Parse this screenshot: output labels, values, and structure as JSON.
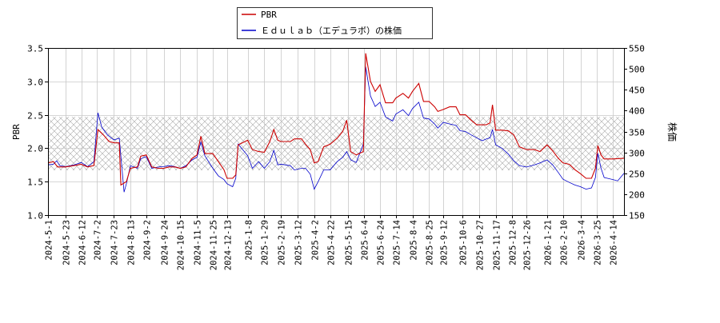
{
  "chart_data": {
    "type": "line",
    "legend_position": "top-center",
    "grid": true,
    "ylabel_left": "PBR",
    "ylabel_right": "株価",
    "ylim_left": [
      1.0,
      3.5
    ],
    "ylim_right": [
      150,
      550
    ],
    "yticks_left": [
      "1.0",
      "1.5",
      "2.0",
      "2.5",
      "3.0",
      "3.5"
    ],
    "yticks_right": [
      "150",
      "200",
      "250",
      "300",
      "350",
      "400",
      "450",
      "500",
      "550"
    ],
    "x_start": "2024-5-1",
    "x_end": "2026-4-28",
    "xtick_labels": [
      "2024-5-1",
      "2024-5-23",
      "2024-6-12",
      "2024-7-2",
      "2024-7-23",
      "2024-8-13",
      "2024-9-2",
      "2024-9-24",
      "2024-10-15",
      "2024-11-5",
      "2024-11-25",
      "2024-12-13",
      "2025-1-8",
      "2025-1-29",
      "2025-2-19",
      "2025-3-12",
      "2025-4-2",
      "2025-4-22",
      "2025-5-15",
      "2025-6-4",
      "2025-6-24",
      "2025-7-14",
      "2025-8-4",
      "2025-8-25",
      "2025-9-12",
      "2025-10-6",
      "2025-10-27",
      "2025-11-17",
      "2025-12-8",
      "2025-12-26",
      "2026-1-21",
      "2026-2-10",
      "2026-3-4",
      "2026-3-25",
      "2026-4-14"
    ],
    "band_left": [
      1.67,
      2.47
    ],
    "series": [
      {
        "name": "PBR",
        "axis": "left",
        "color": "#cc0000",
        "points": [
          [
            "2024-5-1",
            1.78
          ],
          [
            "2024-5-8",
            1.8
          ],
          [
            "2024-5-13",
            1.72
          ],
          [
            "2024-5-23",
            1.72
          ],
          [
            "2024-6-3",
            1.74
          ],
          [
            "2024-6-12",
            1.76
          ],
          [
            "2024-6-20",
            1.72
          ],
          [
            "2024-6-28",
            1.74
          ],
          [
            "2024-7-3",
            2.28
          ],
          [
            "2024-7-10",
            2.2
          ],
          [
            "2024-7-17",
            2.1
          ],
          [
            "2024-7-24",
            2.08
          ],
          [
            "2024-7-30",
            2.08
          ],
          [
            "2024-8-1",
            1.45
          ],
          [
            "2024-8-8",
            1.5
          ],
          [
            "2024-8-13",
            1.7
          ],
          [
            "2024-8-22",
            1.72
          ],
          [
            "2024-8-26",
            1.88
          ],
          [
            "2024-9-2",
            1.9
          ],
          [
            "2024-9-9",
            1.72
          ],
          [
            "2024-9-17",
            1.7
          ],
          [
            "2024-9-24",
            1.7
          ],
          [
            "2024-10-1",
            1.72
          ],
          [
            "2024-10-8",
            1.72
          ],
          [
            "2024-10-15",
            1.7
          ],
          [
            "2024-10-22",
            1.72
          ],
          [
            "2024-10-30",
            1.85
          ],
          [
            "2024-11-5",
            1.9
          ],
          [
            "2024-11-10",
            2.18
          ],
          [
            "2024-11-15",
            1.92
          ],
          [
            "2024-11-25",
            1.92
          ],
          [
            "2024-12-2",
            1.8
          ],
          [
            "2024-12-9",
            1.68
          ],
          [
            "2024-12-13",
            1.55
          ],
          [
            "2024-12-20",
            1.55
          ],
          [
            "2024-12-24",
            1.6
          ],
          [
            "2024-12-27",
            2.05
          ],
          [
            "2025-1-8",
            2.12
          ],
          [
            "2025-1-14",
            1.98
          ],
          [
            "2025-1-22",
            1.95
          ],
          [
            "2025-1-29",
            1.94
          ],
          [
            "2025-2-5",
            2.1
          ],
          [
            "2025-2-10",
            2.28
          ],
          [
            "2025-2-15",
            2.12
          ],
          [
            "2025-2-19",
            2.1
          ],
          [
            "2025-3-3",
            2.1
          ],
          [
            "2025-3-8",
            2.14
          ],
          [
            "2025-3-17",
            2.14
          ],
          [
            "2025-3-22",
            2.06
          ],
          [
            "2025-3-28",
            1.98
          ],
          [
            "2025-4-2",
            1.78
          ],
          [
            "2025-4-7",
            1.8
          ],
          [
            "2025-4-14",
            2.02
          ],
          [
            "2025-4-22",
            2.06
          ],
          [
            "2025-5-1",
            2.15
          ],
          [
            "2025-5-8",
            2.25
          ],
          [
            "2025-5-13",
            2.42
          ],
          [
            "2025-5-18",
            1.95
          ],
          [
            "2025-5-25",
            1.9
          ],
          [
            "2025-6-3",
            1.95
          ],
          [
            "2025-6-6",
            3.42
          ],
          [
            "2025-6-12",
            3.0
          ],
          [
            "2025-6-18",
            2.85
          ],
          [
            "2025-6-24",
            2.95
          ],
          [
            "2025-7-1",
            2.68
          ],
          [
            "2025-7-10",
            2.68
          ],
          [
            "2025-7-14",
            2.75
          ],
          [
            "2025-7-23",
            2.82
          ],
          [
            "2025-7-30",
            2.75
          ],
          [
            "2025-8-4",
            2.85
          ],
          [
            "2025-8-12",
            2.97
          ],
          [
            "2025-8-18",
            2.7
          ],
          [
            "2025-8-25",
            2.7
          ],
          [
            "2025-9-1",
            2.62
          ],
          [
            "2025-9-5",
            2.55
          ],
          [
            "2025-9-12",
            2.58
          ],
          [
            "2025-9-20",
            2.62
          ],
          [
            "2025-9-28",
            2.62
          ],
          [
            "2025-10-3",
            2.5
          ],
          [
            "2025-10-10",
            2.5
          ],
          [
            "2025-10-17",
            2.42
          ],
          [
            "2025-10-24",
            2.35
          ],
          [
            "2025-10-31",
            2.35
          ],
          [
            "2025-11-5",
            2.35
          ],
          [
            "2025-11-10",
            2.38
          ],
          [
            "2025-11-13",
            2.65
          ],
          [
            "2025-11-17",
            2.27
          ],
          [
            "2025-11-25",
            2.27
          ],
          [
            "2025-12-3",
            2.26
          ],
          [
            "2025-12-10",
            2.2
          ],
          [
            "2025-12-17",
            2.02
          ],
          [
            "2025-12-26",
            1.98
          ],
          [
            "2026-1-5",
            1.98
          ],
          [
            "2026-1-12",
            1.95
          ],
          [
            "2026-1-21",
            2.05
          ],
          [
            "2026-1-28",
            1.96
          ],
          [
            "2026-2-4",
            1.85
          ],
          [
            "2026-2-10",
            1.78
          ],
          [
            "2026-2-18",
            1.76
          ],
          [
            "2026-2-25",
            1.68
          ],
          [
            "2026-3-4",
            1.62
          ],
          [
            "2026-3-11",
            1.55
          ],
          [
            "2026-3-18",
            1.55
          ],
          [
            "2026-3-23",
            1.7
          ],
          [
            "2026-3-26",
            2.04
          ],
          [
            "2026-3-30",
            1.9
          ],
          [
            "2026-4-3",
            1.84
          ],
          [
            "2026-4-14",
            1.84
          ],
          [
            "2026-4-28",
            1.85
          ]
        ]
      },
      {
        "name": "Ｅｄｕｌａｂ（エデュラボ）の株価",
        "axis": "right",
        "color": "#0000cc",
        "points": [
          [
            "2024-5-1",
            270
          ],
          [
            "2024-5-8",
            272
          ],
          [
            "2024-5-12",
            280
          ],
          [
            "2024-5-16",
            268
          ],
          [
            "2024-5-23",
            266
          ],
          [
            "2024-6-3",
            270
          ],
          [
            "2024-6-12",
            276
          ],
          [
            "2024-6-20",
            266
          ],
          [
            "2024-6-28",
            278
          ],
          [
            "2024-7-3",
            395
          ],
          [
            "2024-7-8",
            360
          ],
          [
            "2024-7-15",
            342
          ],
          [
            "2024-7-23",
            330
          ],
          [
            "2024-7-30",
            334
          ],
          [
            "2024-8-5",
            205
          ],
          [
            "2024-8-8",
            225
          ],
          [
            "2024-8-13",
            268
          ],
          [
            "2024-8-22",
            262
          ],
          [
            "2024-8-26",
            285
          ],
          [
            "2024-9-2",
            290
          ],
          [
            "2024-9-9",
            262
          ],
          [
            "2024-9-17",
            265
          ],
          [
            "2024-9-24",
            266
          ],
          [
            "2024-10-1",
            268
          ],
          [
            "2024-10-8",
            266
          ],
          [
            "2024-10-15",
            262
          ],
          [
            "2024-10-22",
            268
          ],
          [
            "2024-10-30",
            282
          ],
          [
            "2024-11-5",
            288
          ],
          [
            "2024-11-10",
            325
          ],
          [
            "2024-11-15",
            292
          ],
          [
            "2024-11-25",
            262
          ],
          [
            "2024-12-2",
            244
          ],
          [
            "2024-12-9",
            235
          ],
          [
            "2024-12-13",
            225
          ],
          [
            "2024-12-20",
            218
          ],
          [
            "2024-12-24",
            238
          ],
          [
            "2024-12-27",
            320
          ],
          [
            "2025-1-8",
            292
          ],
          [
            "2025-1-14",
            262
          ],
          [
            "2025-1-22",
            278
          ],
          [
            "2025-1-29",
            262
          ],
          [
            "2025-2-5",
            278
          ],
          [
            "2025-2-10",
            305
          ],
          [
            "2025-2-15",
            270
          ],
          [
            "2025-2-19",
            272
          ],
          [
            "2025-3-3",
            268
          ],
          [
            "2025-3-8",
            258
          ],
          [
            "2025-3-17",
            262
          ],
          [
            "2025-3-22",
            262
          ],
          [
            "2025-3-28",
            248
          ],
          [
            "2025-4-2",
            212
          ],
          [
            "2025-4-7",
            230
          ],
          [
            "2025-4-14",
            258
          ],
          [
            "2025-4-22",
            258
          ],
          [
            "2025-5-1",
            278
          ],
          [
            "2025-5-8",
            288
          ],
          [
            "2025-5-13",
            302
          ],
          [
            "2025-5-18",
            282
          ],
          [
            "2025-5-25",
            276
          ],
          [
            "2025-6-3",
            320
          ],
          [
            "2025-6-6",
            505
          ],
          [
            "2025-6-12",
            435
          ],
          [
            "2025-6-18",
            410
          ],
          [
            "2025-6-24",
            420
          ],
          [
            "2025-7-1",
            385
          ],
          [
            "2025-7-10",
            375
          ],
          [
            "2025-7-14",
            392
          ],
          [
            "2025-7-23",
            402
          ],
          [
            "2025-7-30",
            388
          ],
          [
            "2025-8-4",
            405
          ],
          [
            "2025-8-12",
            420
          ],
          [
            "2025-8-18",
            382
          ],
          [
            "2025-8-25",
            380
          ],
          [
            "2025-9-1",
            368
          ],
          [
            "2025-9-5",
            358
          ],
          [
            "2025-9-12",
            372
          ],
          [
            "2025-9-20",
            368
          ],
          [
            "2025-9-28",
            365
          ],
          [
            "2025-10-3",
            352
          ],
          [
            "2025-10-10",
            350
          ],
          [
            "2025-10-17",
            342
          ],
          [
            "2025-10-24",
            335
          ],
          [
            "2025-10-31",
            328
          ],
          [
            "2025-11-5",
            332
          ],
          [
            "2025-11-10",
            335
          ],
          [
            "2025-11-13",
            355
          ],
          [
            "2025-11-17",
            318
          ],
          [
            "2025-11-25",
            310
          ],
          [
            "2025-12-3",
            296
          ],
          [
            "2025-12-10",
            280
          ],
          [
            "2025-12-17",
            268
          ],
          [
            "2025-12-26",
            265
          ],
          [
            "2026-1-5",
            270
          ],
          [
            "2026-1-12",
            275
          ],
          [
            "2026-1-21",
            282
          ],
          [
            "2026-1-28",
            270
          ],
          [
            "2026-2-4",
            252
          ],
          [
            "2026-2-10",
            236
          ],
          [
            "2026-2-18",
            228
          ],
          [
            "2026-2-25",
            222
          ],
          [
            "2026-3-4",
            218
          ],
          [
            "2026-3-11",
            212
          ],
          [
            "2026-3-18",
            215
          ],
          [
            "2026-3-23",
            240
          ],
          [
            "2026-3-26",
            298
          ],
          [
            "2026-3-30",
            262
          ],
          [
            "2026-4-3",
            240
          ],
          [
            "2026-4-14",
            235
          ],
          [
            "2026-4-20",
            232
          ],
          [
            "2026-4-28",
            250
          ]
        ]
      }
    ]
  }
}
